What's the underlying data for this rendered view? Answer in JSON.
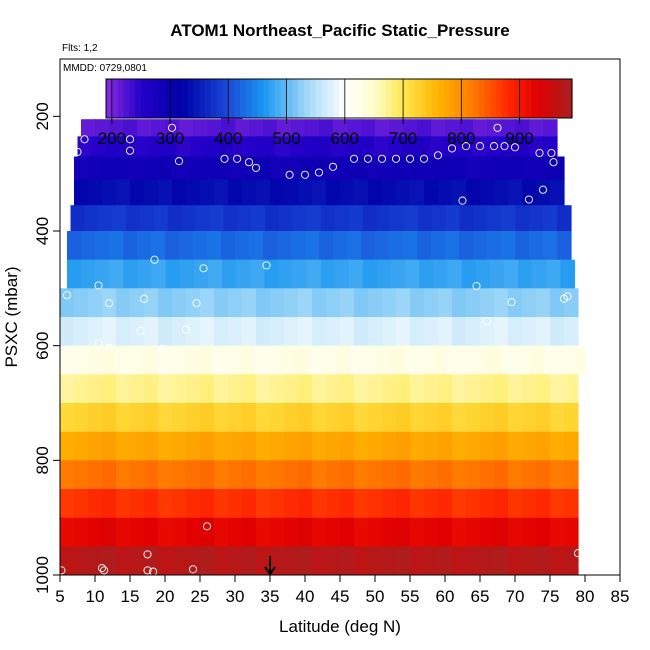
{
  "chart_data": {
    "type": "heatmap",
    "title": "ATOM1 Northeast_Pacific Static_Pressure",
    "flights_label": "Flts: 1,2",
    "dates_label": "MMDD: 0729,0801",
    "xlabel": "Latitude (deg N)",
    "ylabel": "PSXC (mbar)",
    "xlim": [
      5,
      85
    ],
    "ylim": [
      1000,
      100
    ],
    "x_ticks": [
      "5",
      "10",
      "15",
      "20",
      "25",
      "30",
      "35",
      "40",
      "45",
      "50",
      "55",
      "60",
      "65",
      "70",
      "75",
      "80",
      "85"
    ],
    "y_ticks": [
      "200",
      "400",
      "600",
      "800",
      "1000"
    ],
    "colorbar": {
      "range": [
        190,
        990
      ],
      "tick_labels": [
        "200",
        "300",
        "400",
        "500",
        "600",
        "700",
        "800",
        "900"
      ],
      "stops": [
        {
          "v": 190,
          "c": "#8a2be2"
        },
        {
          "v": 250,
          "c": "#2400c8"
        },
        {
          "v": 320,
          "c": "#0000a8"
        },
        {
          "v": 400,
          "c": "#1a4ad8"
        },
        {
          "v": 460,
          "c": "#1a96f0"
        },
        {
          "v": 540,
          "c": "#a8dcf8"
        },
        {
          "v": 600,
          "c": "#ffffff"
        },
        {
          "v": 650,
          "c": "#fffccc"
        },
        {
          "v": 700,
          "c": "#ffe850"
        },
        {
          "v": 760,
          "c": "#ffb400"
        },
        {
          "v": 820,
          "c": "#ff7a00"
        },
        {
          "v": 880,
          "c": "#ff2800"
        },
        {
          "v": 930,
          "c": "#e00000"
        },
        {
          "v": 990,
          "c": "#a82020"
        }
      ]
    },
    "bands": [
      {
        "p_top": 175,
        "p_bot": 205,
        "lat_min": 28,
        "lat_max": 31
      },
      {
        "p_top": 205,
        "p_bot": 235,
        "lat_min": 8,
        "lat_max": 76
      },
      {
        "p_top": 235,
        "p_bot": 270,
        "lat_min": 7.5,
        "lat_max": 76
      },
      {
        "p_top": 270,
        "p_bot": 310,
        "lat_min": 7,
        "lat_max": 77
      },
      {
        "p_top": 310,
        "p_bot": 355,
        "lat_min": 7,
        "lat_max": 77
      },
      {
        "p_top": 355,
        "p_bot": 400,
        "lat_min": 6.5,
        "lat_max": 78
      },
      {
        "p_top": 400,
        "p_bot": 450,
        "lat_min": 6,
        "lat_max": 78
      },
      {
        "p_top": 450,
        "p_bot": 500,
        "lat_min": 6,
        "lat_max": 78.5
      },
      {
        "p_top": 500,
        "p_bot": 550,
        "lat_min": 5,
        "lat_max": 79
      },
      {
        "p_top": 550,
        "p_bot": 600,
        "lat_min": 5,
        "lat_max": 79
      },
      {
        "p_top": 600,
        "p_bot": 650,
        "lat_min": 5,
        "lat_max": 80
      },
      {
        "p_top": 650,
        "p_bot": 700,
        "lat_min": 5,
        "lat_max": 79
      },
      {
        "p_top": 700,
        "p_bot": 750,
        "lat_min": 5,
        "lat_max": 79
      },
      {
        "p_top": 750,
        "p_bot": 800,
        "lat_min": 5,
        "lat_max": 79
      },
      {
        "p_top": 800,
        "p_bot": 850,
        "lat_min": 5,
        "lat_max": 79
      },
      {
        "p_top": 850,
        "p_bot": 900,
        "lat_min": 5,
        "lat_max": 79
      },
      {
        "p_top": 900,
        "p_bot": 950,
        "lat_min": 5,
        "lat_max": 79
      },
      {
        "p_top": 950,
        "p_bot": 1000,
        "lat_min": 5,
        "lat_max": 79
      }
    ],
    "points": [
      {
        "lat": 28,
        "p": 195
      },
      {
        "lat": 30.5,
        "p": 195
      },
      {
        "lat": 8.5,
        "p": 240
      },
      {
        "lat": 15,
        "p": 240
      },
      {
        "lat": 21,
        "p": 220
      },
      {
        "lat": 7.5,
        "p": 262
      },
      {
        "lat": 15,
        "p": 260
      },
      {
        "lat": 22,
        "p": 278
      },
      {
        "lat": 28.5,
        "p": 274
      },
      {
        "lat": 30.3,
        "p": 274
      },
      {
        "lat": 32,
        "p": 280
      },
      {
        "lat": 33,
        "p": 290
      },
      {
        "lat": 37.8,
        "p": 302
      },
      {
        "lat": 40,
        "p": 302
      },
      {
        "lat": 42,
        "p": 298
      },
      {
        "lat": 44,
        "p": 288
      },
      {
        "lat": 47,
        "p": 274
      },
      {
        "lat": 49,
        "p": 274
      },
      {
        "lat": 51,
        "p": 274
      },
      {
        "lat": 53,
        "p": 274
      },
      {
        "lat": 55,
        "p": 274
      },
      {
        "lat": 57,
        "p": 274
      },
      {
        "lat": 59,
        "p": 268
      },
      {
        "lat": 61,
        "p": 256
      },
      {
        "lat": 63,
        "p": 252
      },
      {
        "lat": 65,
        "p": 252
      },
      {
        "lat": 67,
        "p": 252
      },
      {
        "lat": 67.5,
        "p": 220
      },
      {
        "lat": 68.5,
        "p": 252
      },
      {
        "lat": 70,
        "p": 254
      },
      {
        "lat": 73.5,
        "p": 264
      },
      {
        "lat": 75.2,
        "p": 264
      },
      {
        "lat": 75.5,
        "p": 280
      },
      {
        "lat": 74,
        "p": 328
      },
      {
        "lat": 72,
        "p": 345
      },
      {
        "lat": 62.5,
        "p": 347
      },
      {
        "lat": 18.5,
        "p": 450
      },
      {
        "lat": 25.5,
        "p": 465
      },
      {
        "lat": 34.5,
        "p": 460
      },
      {
        "lat": 10.5,
        "p": 495
      },
      {
        "lat": 64.5,
        "p": 496
      },
      {
        "lat": 6,
        "p": 512
      },
      {
        "lat": 17,
        "p": 518
      },
      {
        "lat": 12,
        "p": 526
      },
      {
        "lat": 24.5,
        "p": 526
      },
      {
        "lat": 69.5,
        "p": 524
      },
      {
        "lat": 77.5,
        "p": 514
      },
      {
        "lat": 77,
        "p": 518
      },
      {
        "lat": 66,
        "p": 557
      },
      {
        "lat": 16.5,
        "p": 574
      },
      {
        "lat": 23,
        "p": 572
      },
      {
        "lat": 10.5,
        "p": 596
      },
      {
        "lat": 12,
        "p": 604
      },
      {
        "lat": 19.5,
        "p": 606
      },
      {
        "lat": 27,
        "p": 628
      },
      {
        "lat": 26,
        "p": 915
      },
      {
        "lat": 17.5,
        "p": 964
      },
      {
        "lat": 79,
        "p": 962
      },
      {
        "lat": 5.2,
        "p": 992
      },
      {
        "lat": 11,
        "p": 988
      },
      {
        "lat": 11.3,
        "p": 992
      },
      {
        "lat": 17.5,
        "p": 992
      },
      {
        "lat": 18.3,
        "p": 994
      },
      {
        "lat": 24,
        "p": 990
      }
    ],
    "arrow_lat": 35
  }
}
